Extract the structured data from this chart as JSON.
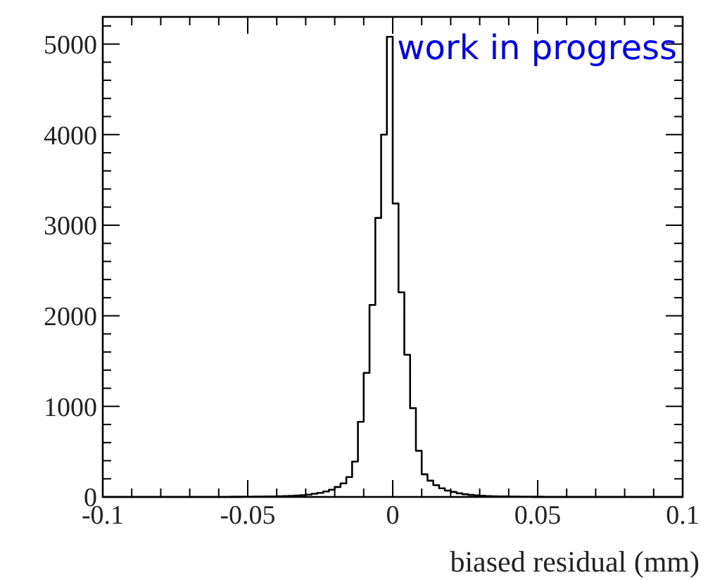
{
  "chart_data": {
    "type": "histogram",
    "xlabel": "biased residual (mm)",
    "annotations": [
      "work in progress"
    ],
    "bins": [
      -0.1,
      -0.098,
      -0.096,
      -0.094,
      -0.092,
      -0.09,
      -0.088,
      -0.086,
      -0.084,
      -0.082,
      -0.08,
      -0.078,
      -0.076,
      -0.074,
      -0.072,
      -0.07,
      -0.068,
      -0.066,
      -0.064,
      -0.062,
      -0.06,
      -0.058,
      -0.056,
      -0.054,
      -0.052,
      -0.05,
      -0.048,
      -0.046,
      -0.044,
      -0.042,
      -0.04,
      -0.038,
      -0.036,
      -0.034,
      -0.032,
      -0.03,
      -0.028,
      -0.026,
      -0.024,
      -0.022,
      -0.02,
      -0.018,
      -0.016,
      -0.014,
      -0.012,
      -0.01,
      -0.008,
      -0.006,
      -0.004,
      -0.002,
      0,
      0.002,
      0.004,
      0.006,
      0.008,
      0.01,
      0.012,
      0.014,
      0.016,
      0.018,
      0.02,
      0.022,
      0.024,
      0.026,
      0.028,
      0.03,
      0.032,
      0.034,
      0.036,
      0.038,
      0.04,
      0.042,
      0.044,
      0.046,
      0.048,
      0.05,
      0.052,
      0.054,
      0.056,
      0.058,
      0.06,
      0.062,
      0.064,
      0.066,
      0.068,
      0.07,
      0.072,
      0.074,
      0.076,
      0.078,
      0.08,
      0.082,
      0.084,
      0.086,
      0.088,
      0.09,
      0.092,
      0.094,
      0.096,
      0.098,
      0.1
    ],
    "values": [
      0,
      0,
      0,
      0,
      0,
      0,
      0,
      0,
      0,
      0,
      0,
      0,
      0,
      0,
      0,
      0,
      0,
      0,
      0,
      0,
      0,
      0,
      1,
      1,
      2,
      2,
      3,
      4,
      5,
      6,
      8,
      10,
      12,
      15,
      20,
      25,
      35,
      45,
      60,
      80,
      110,
      150,
      220,
      390,
      830,
      1370,
      2120,
      3080,
      4000,
      5080,
      3240,
      2260,
      1570,
      980,
      510,
      250,
      180,
      130,
      95,
      70,
      55,
      40,
      30,
      22,
      17,
      13,
      10,
      8,
      6,
      5,
      4,
      3,
      2,
      2,
      1,
      1,
      0,
      0,
      0,
      0,
      0,
      0,
      0,
      0,
      0,
      0,
      0,
      0,
      0,
      0,
      0,
      0,
      0,
      0,
      0,
      0,
      0,
      0,
      0,
      0
    ],
    "color": "#000000",
    "xlim": [
      -0.1,
      0.1
    ],
    "xticks": [
      {
        "value": -0.1,
        "label": "-0.1"
      },
      {
        "value": -0.09,
        "label": null
      },
      {
        "value": -0.08,
        "label": null
      },
      {
        "value": -0.07,
        "label": null
      },
      {
        "value": -0.06,
        "label": null
      },
      {
        "value": -0.05,
        "label": "-0.05"
      },
      {
        "value": -0.04,
        "label": null
      },
      {
        "value": -0.03,
        "label": null
      },
      {
        "value": -0.02,
        "label": null
      },
      {
        "value": -0.01,
        "label": null
      },
      {
        "value": 0,
        "label": "0"
      },
      {
        "value": 0.01,
        "label": null
      },
      {
        "value": 0.02,
        "label": null
      },
      {
        "value": 0.03,
        "label": null
      },
      {
        "value": 0.04,
        "label": null
      },
      {
        "value": 0.05,
        "label": "0.05"
      },
      {
        "value": 0.06,
        "label": null
      },
      {
        "value": 0.07,
        "label": null
      },
      {
        "value": 0.08,
        "label": null
      },
      {
        "value": 0.09,
        "label": null
      },
      {
        "value": 0.1,
        "label": "0.1"
      }
    ],
    "ylim": [
      0,
      5300
    ],
    "yticks": [
      {
        "value": 0,
        "label": "0"
      },
      {
        "value": 200,
        "label": null
      },
      {
        "value": 400,
        "label": null
      },
      {
        "value": 600,
        "label": null
      },
      {
        "value": 800,
        "label": null
      },
      {
        "value": 1000,
        "label": "1000"
      },
      {
        "value": 1200,
        "label": null
      },
      {
        "value": 1400,
        "label": null
      },
      {
        "value": 1600,
        "label": null
      },
      {
        "value": 1800,
        "label": null
      },
      {
        "value": 2000,
        "label": "2000"
      },
      {
        "value": 2200,
        "label": null
      },
      {
        "value": 2400,
        "label": null
      },
      {
        "value": 2600,
        "label": null
      },
      {
        "value": 2800,
        "label": null
      },
      {
        "value": 3000,
        "label": "3000"
      },
      {
        "value": 3200,
        "label": null
      },
      {
        "value": 3400,
        "label": null
      },
      {
        "value": 3600,
        "label": null
      },
      {
        "value": 3800,
        "label": null
      },
      {
        "value": 4000,
        "label": "4000"
      },
      {
        "value": 4200,
        "label": null
      },
      {
        "value": 4400,
        "label": null
      },
      {
        "value": 4600,
        "label": null
      },
      {
        "value": 4800,
        "label": null
      },
      {
        "value": 5000,
        "label": "5000"
      },
      {
        "value": 5200,
        "label": null
      }
    ],
    "grid": false
  }
}
